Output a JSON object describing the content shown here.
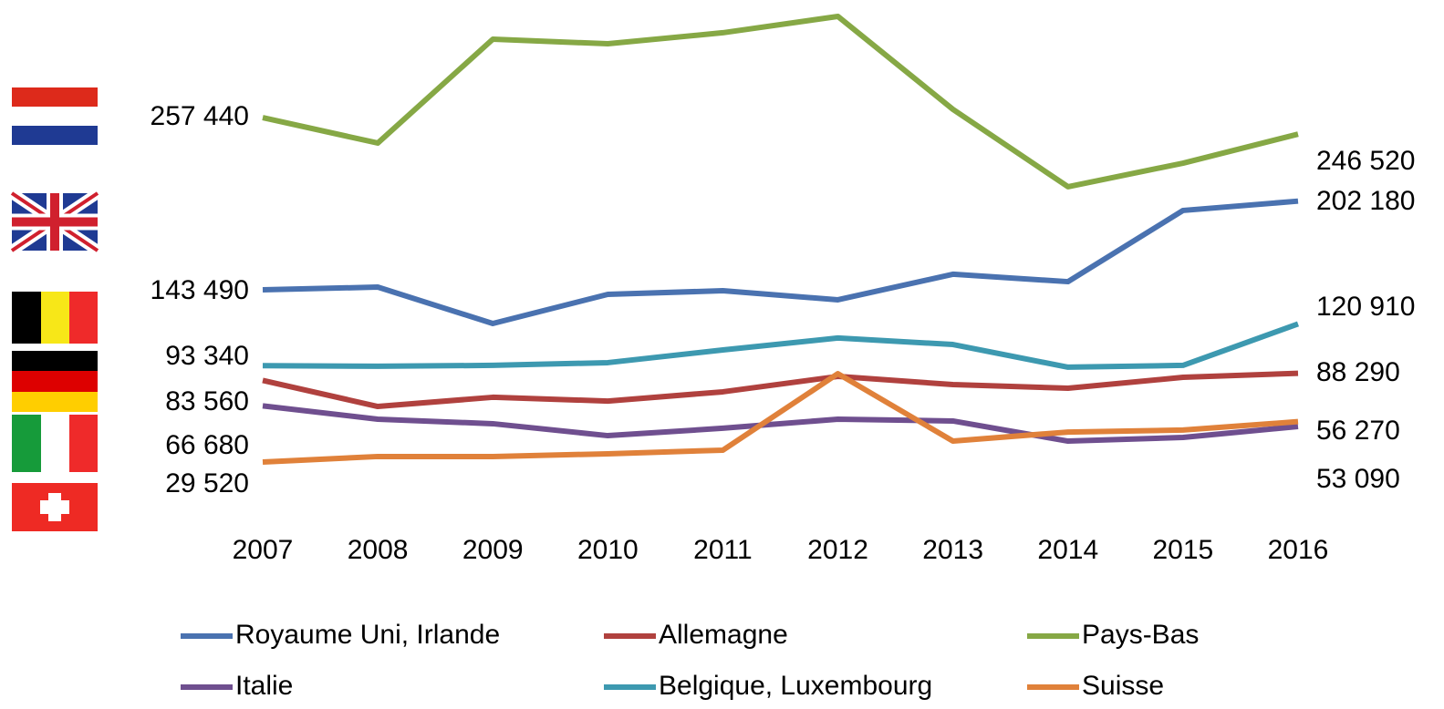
{
  "chart_data": {
    "type": "line",
    "categories": [
      "2007",
      "2008",
      "2009",
      "2010",
      "2011",
      "2012",
      "2013",
      "2014",
      "2015",
      "2016"
    ],
    "series": [
      {
        "name": "Royaume Uni, Irlande",
        "color": "#4a72b0",
        "values": [
          143490,
          145300,
          121200,
          140500,
          142900,
          136900,
          153800,
          148900,
          196000,
          202180
        ],
        "value_labels": [
          "143 490",
          null,
          null,
          null,
          null,
          null,
          null,
          null,
          null,
          "202 180"
        ]
      },
      {
        "name": "Allemagne",
        "color": "#b0413e",
        "values": [
          83560,
          66300,
          72400,
          69900,
          76000,
          86200,
          80800,
          78400,
          85600,
          88290
        ],
        "value_labels": [
          "83 560",
          null,
          null,
          null,
          null,
          null,
          null,
          null,
          null,
          "88 290"
        ]
      },
      {
        "name": "Pays-Bas",
        "color": "#86a845",
        "values": [
          257440,
          240600,
          309300,
          306300,
          313600,
          324400,
          262900,
          211700,
          227300,
          246520
        ],
        "value_labels": [
          "257 440",
          null,
          null,
          null,
          null,
          null,
          null,
          null,
          null,
          "246 520"
        ]
      },
      {
        "name": "Italie",
        "color": "#6f4f8f",
        "values": [
          66680,
          57900,
          54900,
          47000,
          51900,
          57900,
          56700,
          43400,
          45800,
          53090
        ],
        "value_labels": [
          "66 680",
          null,
          null,
          null,
          null,
          null,
          null,
          null,
          null,
          "53 090"
        ]
      },
      {
        "name": "Belgique, Luxembourg",
        "color": "#3d99b0",
        "values": [
          93340,
          92900,
          93500,
          95300,
          103700,
          111600,
          107300,
          92300,
          93500,
          120910
        ],
        "value_labels": [
          "93 340",
          null,
          null,
          null,
          null,
          null,
          null,
          null,
          null,
          "120 910"
        ]
      },
      {
        "name": "Suisse",
        "color": "#e0813a",
        "values": [
          29520,
          33200,
          33200,
          35000,
          37400,
          88000,
          43400,
          49400,
          50700,
          56270
        ],
        "value_labels": [
          "29 520",
          null,
          null,
          null,
          null,
          null,
          null,
          null,
          null,
          "56 270"
        ]
      }
    ],
    "legend": "bottom"
  }
}
